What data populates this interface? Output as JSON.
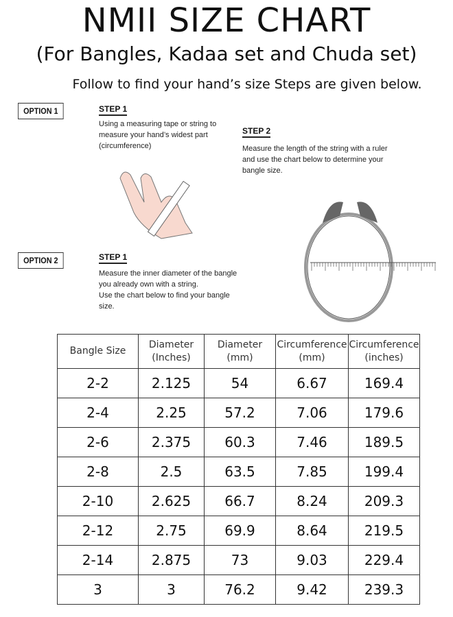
{
  "title": "NMII SIZE CHART",
  "subtitle": "(For Bangles, Kadaa set and Chuda set)",
  "intro": "Follow to find your hand’s size Steps are given below.",
  "option1": {
    "label": "OPTION 1",
    "step1": {
      "title": "STEP 1",
      "lines": [
        "Using a measuring tape or string to",
        "measure your hand’s widest part",
        "(circumference)"
      ]
    },
    "step2": {
      "title": "STEP 2",
      "lines": [
        "Measure the length of the string with a ruler",
        "and use the chart below to determine your",
        "bangle size."
      ]
    }
  },
  "option2": {
    "label": "OPTION 2",
    "step1": {
      "title": "STEP 1",
      "lines": [
        "Measure the inner diameter of the bangle",
        "you already own with a string.",
        "Use the chart below to find your bangle",
        "size."
      ]
    }
  },
  "table": {
    "headers": [
      [
        "Bangle Size",
        ""
      ],
      [
        "Diameter",
        "(Inches)"
      ],
      [
        "Diameter",
        "(mm)"
      ],
      [
        "Circumference",
        "(mm)"
      ],
      [
        "Circumference",
        "(inches)"
      ]
    ],
    "rows": [
      [
        "2-2",
        "2.125",
        "54",
        "6.67",
        "169.4"
      ],
      [
        "2-4",
        "2.25",
        "57.2",
        "7.06",
        "179.6"
      ],
      [
        "2-6",
        "2.375",
        "60.3",
        "7.46",
        "189.5"
      ],
      [
        "2-8",
        "2.5",
        "63.5",
        "7.85",
        "199.4"
      ],
      [
        "2-10",
        "2.625",
        "66.7",
        "8.24",
        "209.3"
      ],
      [
        "2-12",
        "2.75",
        "69.9",
        "8.64",
        "219.5"
      ],
      [
        "2-14",
        "2.875",
        "73",
        "9.03",
        "229.4"
      ],
      [
        "3",
        "3",
        "76.2",
        "9.42",
        "239.3"
      ]
    ]
  }
}
